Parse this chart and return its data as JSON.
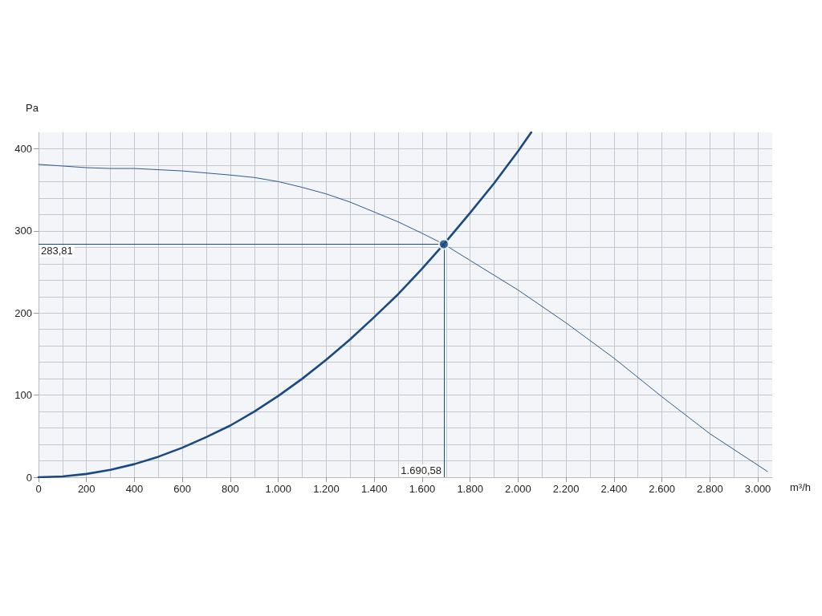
{
  "chart_data": {
    "type": "line",
    "xlabel": "m³/h",
    "ylabel": "Pa",
    "xlim": [
      0,
      3060
    ],
    "ylim": [
      0,
      420
    ],
    "xticks": [
      0,
      200,
      400,
      600,
      800,
      {
        "value": 1000,
        "label": "1.000"
      },
      {
        "value": 1200,
        "label": "1.200"
      },
      {
        "value": 1400,
        "label": "1.400"
      },
      {
        "value": 1600,
        "label": "1.600"
      },
      {
        "value": 1800,
        "label": "1.800"
      },
      {
        "value": 2000,
        "label": "2.000"
      },
      {
        "value": 2200,
        "label": "2.200"
      },
      {
        "value": 2400,
        "label": "2.400"
      },
      {
        "value": 2600,
        "label": "2.600"
      },
      {
        "value": 2800,
        "label": "2.800"
      },
      {
        "value": 3000,
        "label": "3.000"
      }
    ],
    "yticks": [
      0,
      100,
      200,
      300,
      400
    ],
    "grid": true,
    "marker": "none",
    "line_style": "solid",
    "series": [
      {
        "color": "#1b4a82",
        "x": [
          0,
          100,
          200,
          300,
          400,
          500,
          600,
          700,
          800,
          900,
          1000,
          1100,
          1200,
          1300,
          1400,
          1500,
          1600,
          1690.58,
          1800,
          1900,
          2000,
          2055
        ],
        "values": [
          0,
          1,
          4,
          9,
          16,
          25,
          36,
          49,
          63,
          80,
          99,
          120,
          143,
          168,
          195,
          223,
          254,
          283.81,
          322,
          358,
          397,
          420
        ]
      },
      {
        "color": "#2f5b8c",
        "x": [
          0,
          100,
          200,
          300,
          400,
          600,
          800,
          900,
          1000,
          1100,
          1200,
          1300,
          1400,
          1500,
          1600,
          1690.58,
          1800,
          2000,
          2200,
          2400,
          2600,
          2800,
          3040
        ],
        "values": [
          381,
          379,
          377,
          376,
          376,
          373,
          368,
          365,
          360,
          353,
          345,
          335,
          323,
          311,
          297,
          283.81,
          264,
          228,
          188,
          145,
          98,
          53,
          7
        ]
      },
      {
        "type": "scatter",
        "marker": "circle",
        "color": "#1b4a82",
        "x": [
          1690.58
        ],
        "values": [
          283.81
        ]
      }
    ],
    "ref_lines": [
      {
        "axis": "y",
        "value": 283.81,
        "label": "283,81",
        "color": "#1b4a82"
      },
      {
        "axis": "x",
        "value": 1690.58,
        "label": "1.690,58",
        "color": "#1b4a82"
      }
    ]
  }
}
